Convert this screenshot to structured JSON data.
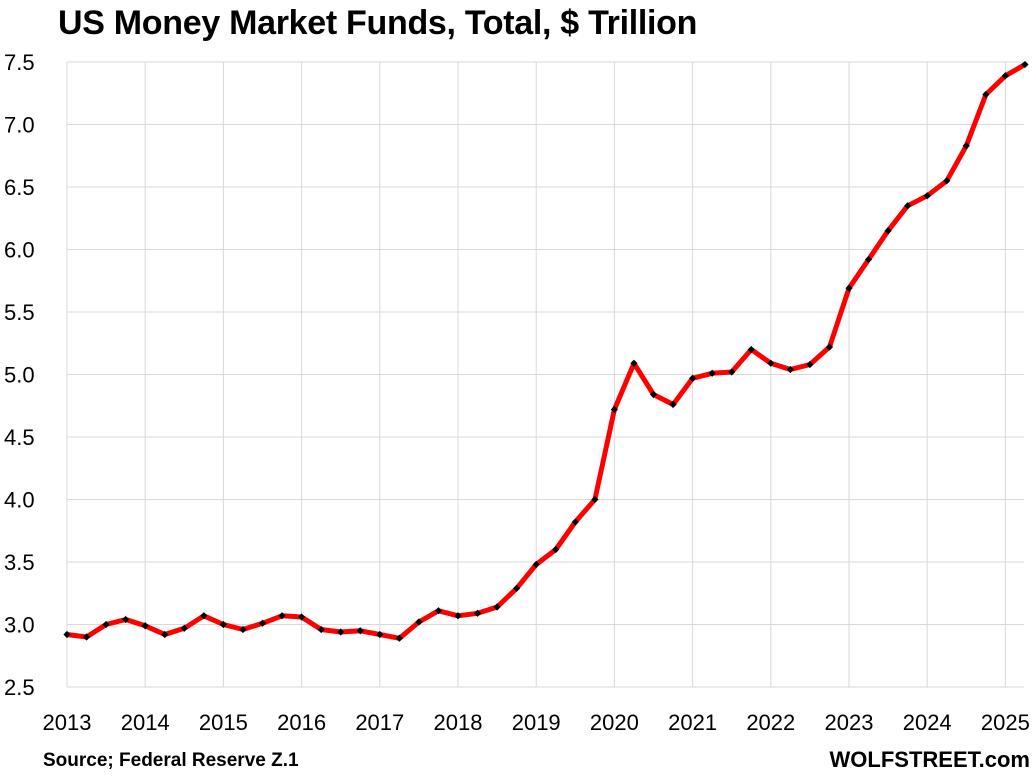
{
  "title": "US Money Market Funds, Total, $ Trillion",
  "source": "Source; Federal Reserve Z.1",
  "brand": "WOLFSTREET.com",
  "colors": {
    "line": "#ff0000",
    "marker": "#000000",
    "grid": "#d9d9d9"
  },
  "chart_data": {
    "type": "line",
    "title": "US Money Market Funds, Total, $ Trillion",
    "xlabel": "",
    "ylabel": "",
    "ylim": [
      2.5,
      7.5
    ],
    "yticks": [
      "2.5",
      "3.0",
      "3.5",
      "4.0",
      "4.5",
      "5.0",
      "5.5",
      "6.0",
      "6.5",
      "7.0",
      "7.5"
    ],
    "xticks": [
      "2013",
      "2014",
      "2015",
      "2016",
      "2017",
      "2018",
      "2019",
      "2020",
      "2021",
      "2022",
      "2023",
      "2024",
      "2025"
    ],
    "grid": true,
    "legend": "none",
    "series": [
      {
        "x": [
          "2013-Q1",
          "2013-Q2",
          "2013-Q3",
          "2013-Q4",
          "2014-Q1",
          "2014-Q2",
          "2014-Q3",
          "2014-Q4",
          "2015-Q1",
          "2015-Q2",
          "2015-Q3",
          "2015-Q4",
          "2016-Q1",
          "2016-Q2",
          "2016-Q3",
          "2016-Q4",
          "2017-Q1",
          "2017-Q2",
          "2017-Q3",
          "2017-Q4",
          "2018-Q1",
          "2018-Q2",
          "2018-Q3",
          "2018-Q4",
          "2019-Q1",
          "2019-Q2",
          "2019-Q3",
          "2019-Q4",
          "2020-Q1",
          "2020-Q2",
          "2020-Q3",
          "2020-Q4",
          "2021-Q1",
          "2021-Q2",
          "2021-Q3",
          "2021-Q4",
          "2022-Q1",
          "2022-Q2",
          "2022-Q3",
          "2022-Q4",
          "2023-Q1",
          "2023-Q2",
          "2023-Q3",
          "2023-Q4",
          "2024-Q1",
          "2024-Q2",
          "2024-Q3",
          "2024-Q4",
          "2025-Q1",
          "2025-Q2"
        ],
        "values": [
          2.92,
          2.9,
          3.0,
          3.04,
          2.99,
          2.92,
          2.97,
          3.07,
          3.0,
          2.96,
          3.01,
          3.07,
          3.06,
          2.96,
          2.94,
          2.95,
          2.92,
          2.89,
          3.02,
          3.11,
          3.07,
          3.09,
          3.14,
          3.29,
          3.48,
          3.6,
          3.82,
          4.0,
          4.72,
          5.09,
          4.84,
          4.76,
          4.97,
          5.01,
          5.02,
          5.2,
          5.09,
          5.04,
          5.08,
          5.22,
          5.69,
          5.92,
          6.15,
          6.35,
          6.43,
          6.55,
          6.83,
          7.24,
          7.39,
          7.48
        ]
      }
    ]
  }
}
